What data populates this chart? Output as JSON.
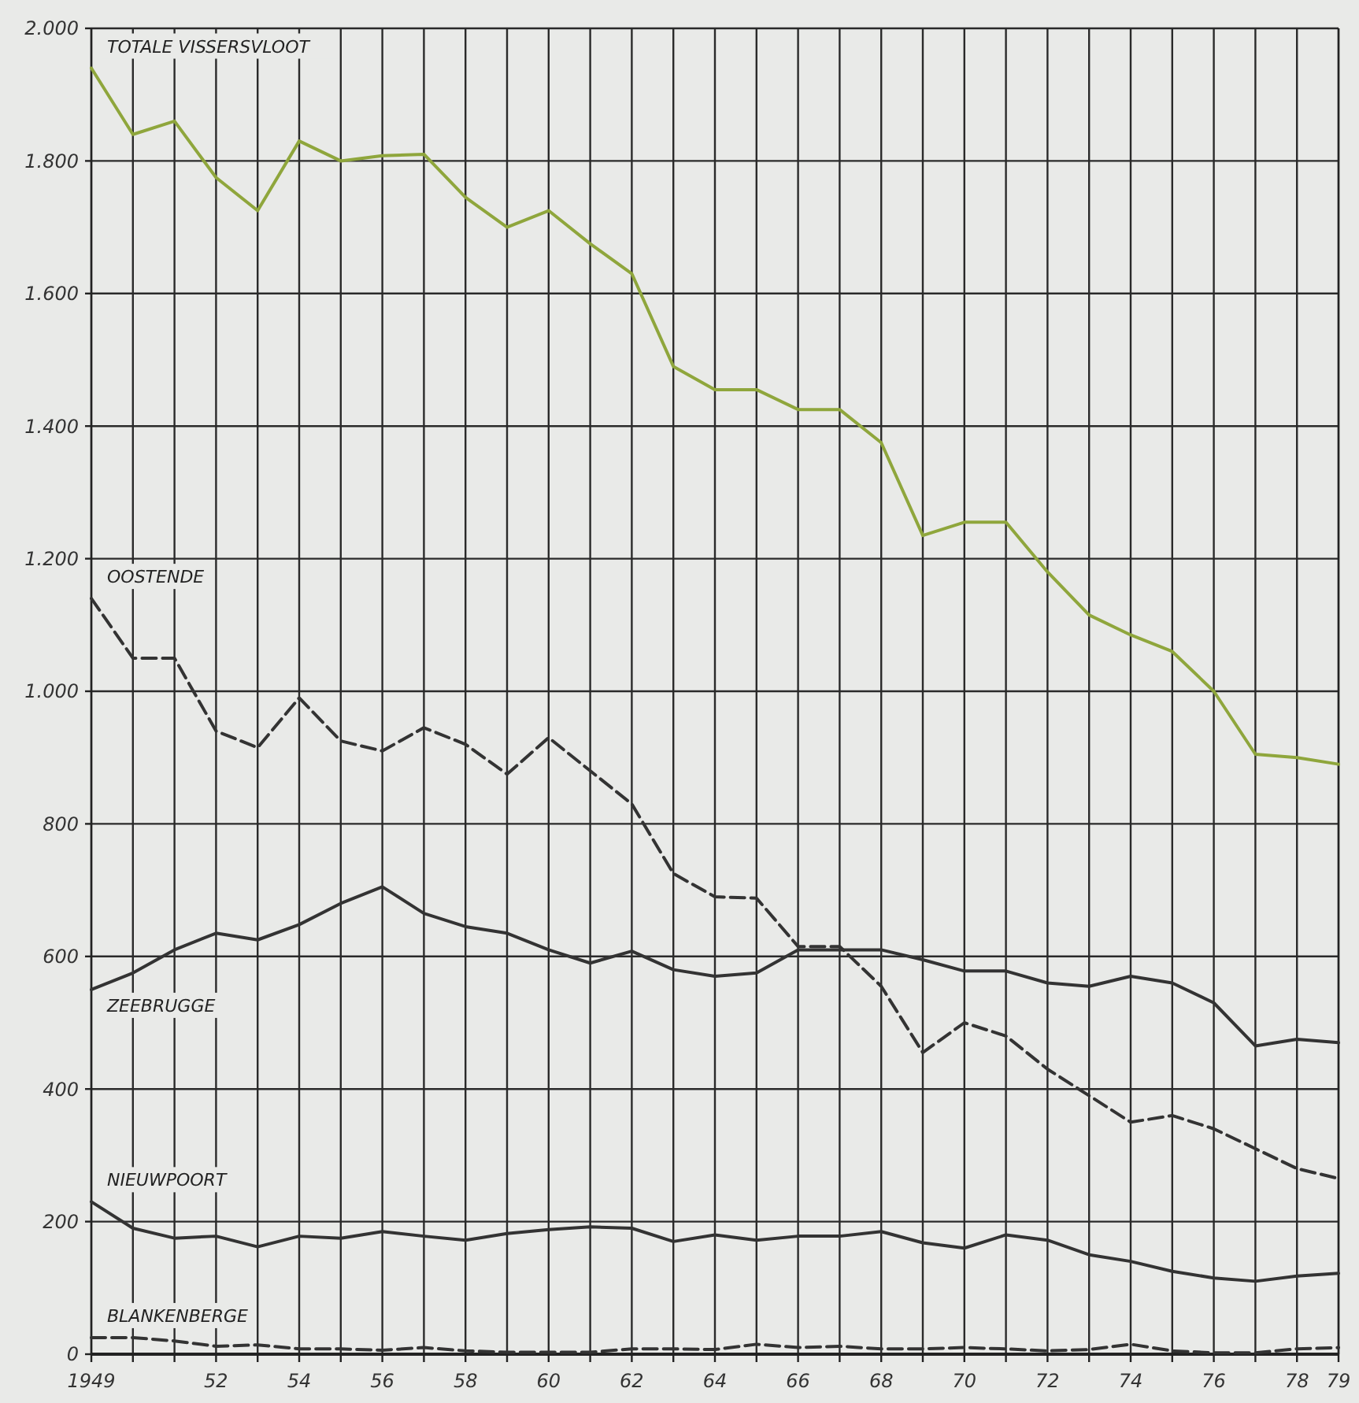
{
  "chart_data": {
    "type": "line",
    "x": [
      1949,
      1950,
      1951,
      1952,
      1953,
      1954,
      1955,
      1956,
      1957,
      1958,
      1959,
      1960,
      1961,
      1962,
      1963,
      1964,
      1965,
      1966,
      1967,
      1968,
      1969,
      1970,
      1971,
      1972,
      1973,
      1974,
      1975,
      1976,
      1977,
      1978,
      1979
    ],
    "series": [
      {
        "name": "TOTALE VISSERSVLOOT",
        "color": "#8fa63c",
        "line_style": "solid",
        "values": [
          1940,
          1840,
          1860,
          1775,
          1725,
          1830,
          1800,
          1808,
          1810,
          1745,
          1700,
          1725,
          1675,
          1630,
          1490,
          1455,
          1455,
          1425,
          1425,
          1375,
          1235,
          1255,
          1255,
          1180,
          1115,
          1085,
          1060,
          1000,
          905,
          900,
          890
        ]
      },
      {
        "name": "OOSTENDE",
        "color": "#333333",
        "line_style": "dashed",
        "values": [
          1140,
          1050,
          1050,
          940,
          915,
          990,
          925,
          910,
          945,
          920,
          875,
          930,
          880,
          830,
          725,
          690,
          688,
          615,
          615,
          555,
          455,
          500,
          480,
          430,
          390,
          350,
          360,
          340,
          310,
          280,
          265
        ]
      },
      {
        "name": "ZEEBRUGGE",
        "color": "#333333",
        "line_style": "solid",
        "values": [
          550,
          575,
          610,
          635,
          625,
          648,
          680,
          705,
          665,
          645,
          635,
          610,
          590,
          608,
          580,
          570,
          575,
          610,
          610,
          610,
          595,
          578,
          578,
          560,
          555,
          570,
          560,
          530,
          465,
          475,
          470
        ]
      },
      {
        "name": "NIEUWPOORT",
        "color": "#333333",
        "line_style": "solid",
        "values": [
          230,
          190,
          175,
          178,
          162,
          178,
          175,
          185,
          178,
          172,
          182,
          188,
          192,
          190,
          170,
          180,
          172,
          178,
          178,
          185,
          168,
          160,
          180,
          172,
          150,
          140,
          125,
          115,
          110,
          118,
          122
        ]
      },
      {
        "name": "BLANKENBERGE",
        "color": "#333333",
        "line_style": "dashed",
        "values": [
          25,
          25,
          20,
          12,
          14,
          8,
          8,
          6,
          10,
          5,
          3,
          3,
          3,
          8,
          8,
          7,
          15,
          10,
          12,
          8,
          8,
          10,
          8,
          5,
          7,
          15,
          5,
          2,
          2,
          8,
          10
        ]
      }
    ],
    "xlim": [
      1949,
      1979
    ],
    "xticks": [
      {
        "value": 1949,
        "label": "1949"
      },
      {
        "value": 1950,
        "label": null
      },
      {
        "value": 1951,
        "label": null
      },
      {
        "value": 1952,
        "label": "52"
      },
      {
        "value": 1953,
        "label": null
      },
      {
        "value": 1954,
        "label": "54"
      },
      {
        "value": 1955,
        "label": null
      },
      {
        "value": 1956,
        "label": "56"
      },
      {
        "value": 1957,
        "label": null
      },
      {
        "value": 1958,
        "label": "58"
      },
      {
        "value": 1959,
        "label": null
      },
      {
        "value": 1960,
        "label": "60"
      },
      {
        "value": 1961,
        "label": null
      },
      {
        "value": 1962,
        "label": "62"
      },
      {
        "value": 1963,
        "label": null
      },
      {
        "value": 1964,
        "label": "64"
      },
      {
        "value": 1965,
        "label": null
      },
      {
        "value": 1966,
        "label": "66"
      },
      {
        "value": 1967,
        "label": null
      },
      {
        "value": 1968,
        "label": "68"
      },
      {
        "value": 1969,
        "label": null
      },
      {
        "value": 1970,
        "label": "70"
      },
      {
        "value": 1971,
        "label": null
      },
      {
        "value": 1972,
        "label": "72"
      },
      {
        "value": 1973,
        "label": null
      },
      {
        "value": 1974,
        "label": "74"
      },
      {
        "value": 1975,
        "label": null
      },
      {
        "value": 1976,
        "label": "76"
      },
      {
        "value": 1977,
        "label": null
      },
      {
        "value": 1978,
        "label": "78"
      },
      {
        "value": 1979,
        "label": "79"
      }
    ],
    "ylim": [
      0,
      2000
    ],
    "yticks": [
      0,
      200,
      400,
      600,
      800,
      {
        "value": 1000,
        "label": "1.000"
      },
      {
        "value": 1200,
        "label": "1.200"
      },
      {
        "value": 1400,
        "label": "1.400"
      },
      {
        "value": 1600,
        "label": "1.600"
      },
      {
        "value": 1800,
        "label": "1.800"
      },
      {
        "value": 2000,
        "label": "2.000"
      }
    ],
    "grid": true
  }
}
